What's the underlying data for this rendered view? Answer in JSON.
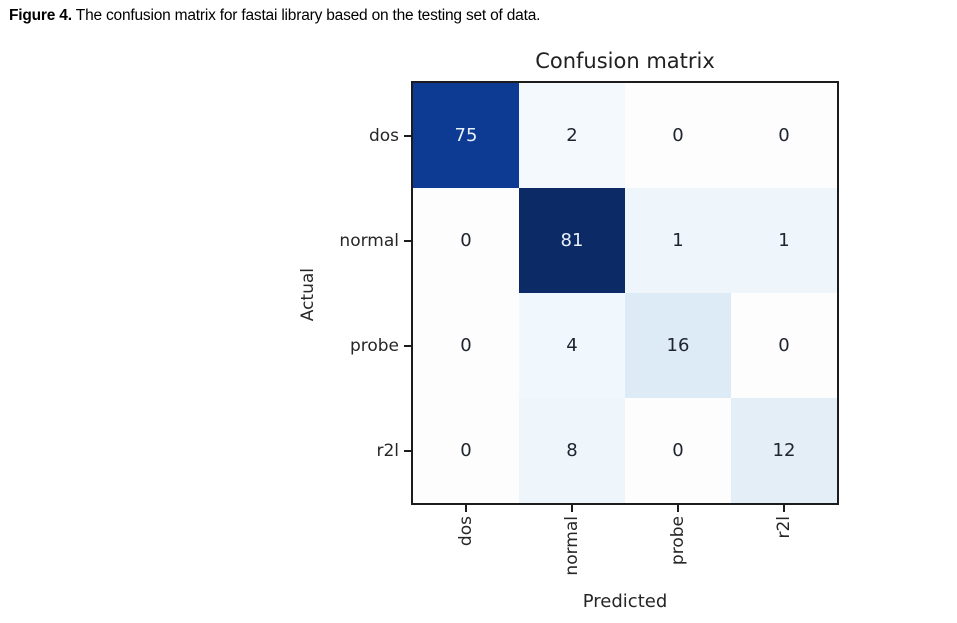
{
  "caption": {
    "label": "Figure 4.",
    "text": "The confusion matrix for fastai library based on the testing set of data."
  },
  "chart_data": {
    "type": "heatmap",
    "title": "Confusion matrix",
    "xlabel": "Predicted",
    "ylabel": "Actual",
    "x_categories": [
      "dos",
      "normal",
      "probe",
      "r2l"
    ],
    "y_categories": [
      "dos",
      "normal",
      "probe",
      "r2l"
    ],
    "matrix": [
      [
        75,
        2,
        0,
        0
      ],
      [
        0,
        81,
        1,
        1
      ],
      [
        0,
        4,
        16,
        0
      ],
      [
        0,
        8,
        0,
        12
      ]
    ],
    "colormap": "Blues",
    "cell_colors": [
      [
        "#0d3a92",
        "#f3f9fd",
        "#fdfdfe",
        "#fdfdfe"
      ],
      [
        "#fdfdfe",
        "#0b2a66",
        "#eef5fb",
        "#eef5fb"
      ],
      [
        "#fdfdfe",
        "#f1f8fd",
        "#dcebf6",
        "#fdfdfe"
      ],
      [
        "#fdfdfe",
        "#eef5fb",
        "#fdfdfe",
        "#e3eef7"
      ]
    ],
    "cell_text_colors": [
      [
        "#e8f1fa",
        "#20242e",
        "#20242e",
        "#20242e"
      ],
      [
        "#20242e",
        "#e8f1fa",
        "#20242e",
        "#20242e"
      ],
      [
        "#20242e",
        "#20242e",
        "#20242e",
        "#20242e"
      ],
      [
        "#20242e",
        "#20242e",
        "#20242e",
        "#20242e"
      ]
    ],
    "grid": false,
    "legend": "none"
  },
  "colors": {
    "background": "#ffffff",
    "frame": "#1c1c1c",
    "tick": "#1c1c1c",
    "title_text": "#212121",
    "axis_text": "#262626",
    "caption_text": "#000000"
  }
}
